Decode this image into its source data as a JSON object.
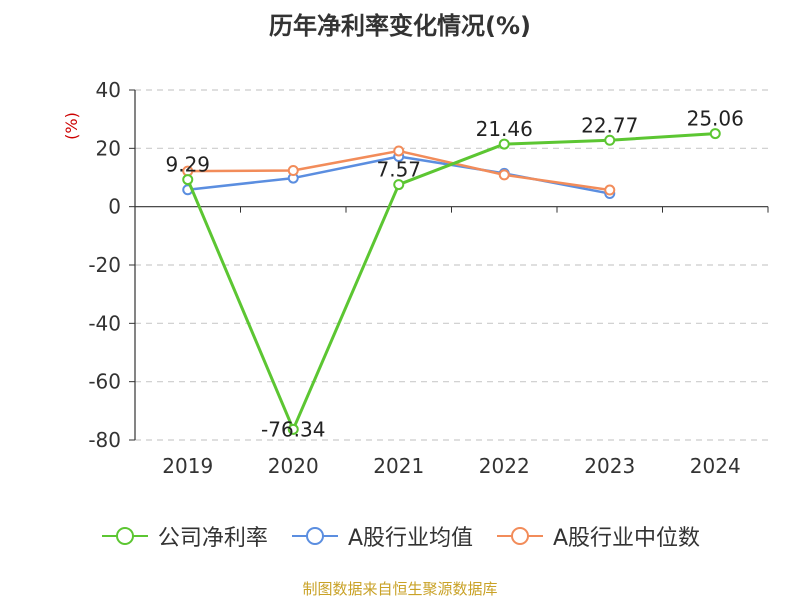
{
  "title": "历年净利率变化情况(%)",
  "source_text": "制图数据来自恒生聚源数据库",
  "chart_data": {
    "type": "line",
    "categories": [
      "2019",
      "2020",
      "2021",
      "2022",
      "2023",
      "2024"
    ],
    "yunit": "(%)",
    "ylim": [
      -80,
      40
    ],
    "yticks": [
      40,
      20,
      0,
      -20,
      -40,
      -60,
      -80
    ],
    "grid": true,
    "legend_position": "bottom",
    "series": [
      {
        "name": "公司净利率",
        "color": "#5cc632",
        "values": [
          9.29,
          -76.34,
          7.57,
          21.46,
          22.77,
          25.06
        ],
        "show_labels": true
      },
      {
        "name": "A股行业均值",
        "color": "#5b8ee0",
        "values": [
          5.8,
          9.8,
          17.2,
          11.4,
          4.5,
          null
        ],
        "show_labels": false
      },
      {
        "name": "A股行业中位数",
        "color": "#f28c5a",
        "values": [
          12.2,
          12.4,
          19.1,
          10.9,
          5.7,
          null
        ],
        "show_labels": false
      }
    ]
  }
}
